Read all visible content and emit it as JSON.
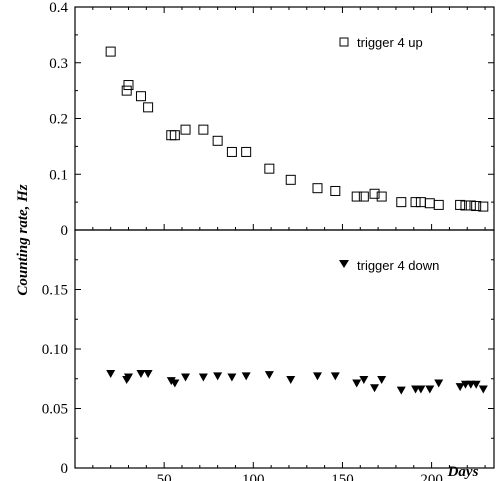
{
  "chart_data": [
    {
      "type": "scatter",
      "panel": "top",
      "ylim": [
        0,
        0.4
      ],
      "yticks": [
        "0",
        "0.1",
        "0.2",
        "0.3",
        "0.4"
      ],
      "series": [
        {
          "name": "trigger 4 up",
          "marker": "open-square",
          "x": [
            20,
            29,
            30,
            37,
            41,
            54,
            56,
            62,
            72,
            80,
            88,
            96,
            109,
            121,
            136,
            146,
            158,
            162,
            168,
            172,
            183,
            191,
            194,
            199,
            204,
            216,
            219,
            222,
            225,
            229
          ],
          "y": [
            0.32,
            0.25,
            0.26,
            0.24,
            0.22,
            0.17,
            0.17,
            0.18,
            0.18,
            0.16,
            0.14,
            0.14,
            0.11,
            0.09,
            0.075,
            0.07,
            0.06,
            0.06,
            0.065,
            0.06,
            0.05,
            0.05,
            0.05,
            0.048,
            0.045,
            0.045,
            0.044,
            0.044,
            0.043,
            0.042
          ]
        }
      ]
    },
    {
      "type": "scatter",
      "panel": "bottom",
      "ylim": [
        0,
        0.2
      ],
      "yticks": [
        "0",
        "0.05",
        "0.10",
        "0.15"
      ],
      "series": [
        {
          "name": "trigger 4 down",
          "marker": "filled-triangle-down",
          "x": [
            20,
            29,
            30,
            37,
            41,
            54,
            56,
            62,
            72,
            80,
            88,
            96,
            109,
            121,
            136,
            146,
            158,
            162,
            168,
            172,
            183,
            191,
            194,
            199,
            204,
            216,
            219,
            222,
            225,
            229
          ],
          "y": [
            0.079,
            0.074,
            0.076,
            0.079,
            0.079,
            0.073,
            0.071,
            0.076,
            0.076,
            0.077,
            0.076,
            0.077,
            0.078,
            0.074,
            0.077,
            0.077,
            0.071,
            0.074,
            0.067,
            0.074,
            0.065,
            0.066,
            0.066,
            0.066,
            0.071,
            0.068,
            0.07,
            0.07,
            0.07,
            0.066
          ]
        }
      ]
    }
  ],
  "x_axis": {
    "label": "Days",
    "range": [
      0,
      235
    ],
    "ticks": [
      50,
      100,
      150,
      200
    ]
  },
  "y_axis_label": "Counting rate,  Hz"
}
